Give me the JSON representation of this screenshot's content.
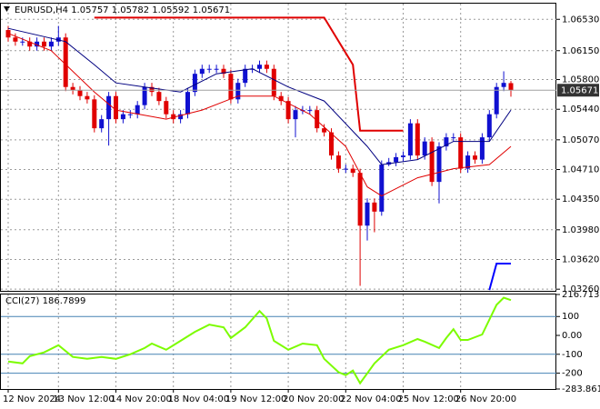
{
  "chart_data": [
    {
      "type": "candlestick",
      "title": "EURUSD,H4  1.05757 1.05782 1.05592 1.05671",
      "categories": [
        "12 Nov 2024",
        null,
        null,
        null,
        null,
        null,
        null,
        "13 Nov 12:00",
        null,
        null,
        null,
        null,
        null,
        null,
        null,
        "14 Nov 20:00",
        null,
        null,
        null,
        null,
        null,
        null,
        null,
        "18 Nov 04:00",
        null,
        null,
        null,
        null,
        null,
        null,
        null,
        "19 Nov 12:00",
        null,
        null,
        null,
        null,
        null,
        null,
        null,
        "20 Nov 20:00",
        null,
        null,
        null,
        null,
        null,
        null,
        null,
        "22 Nov 04:00",
        null,
        null,
        null,
        null,
        null,
        null,
        null,
        "25 Nov 12:00",
        null,
        null,
        null,
        null,
        null,
        null,
        null,
        "26 Nov 20:00",
        null,
        null,
        null,
        null,
        null,
        null,
        null
      ],
      "open": [
        1.064,
        1.0631,
        1.0626,
        1.0626,
        1.062,
        1.0626,
        1.062,
        1.0626,
        1.0631,
        1.0571,
        1.0567,
        1.056,
        1.0556,
        1.0521,
        1.0532,
        1.056,
        1.0532,
        1.0538,
        1.0538,
        1.0549,
        1.0571,
        1.0565,
        1.0554,
        1.0538,
        1.0532,
        1.0538,
        1.0565,
        1.0587,
        1.0593,
        1.0593,
        1.0593,
        1.0587,
        1.0556,
        1.0576,
        1.0593,
        1.0593,
        1.0598,
        1.0593,
        1.056,
        1.0554,
        1.0532,
        1.0543,
        1.0543,
        1.0543,
        1.0521,
        1.0516,
        1.0488,
        1.0472,
        1.0472,
        1.0467,
        1.0403,
        1.0431,
        1.042,
        1.0477,
        1.048,
        1.0486,
        1.0488,
        1.0527,
        1.0488,
        1.0505,
        1.0456,
        1.0499,
        1.051,
        1.051,
        1.0472,
        1.0488,
        1.0483,
        1.051,
        1.0538,
        1.0571,
        1.05757
      ],
      "high": [
        1.0645,
        1.0636,
        1.0631,
        1.0631,
        1.0631,
        1.0631,
        1.0631,
        1.0645,
        1.0636,
        1.0576,
        1.0572,
        1.0565,
        1.0561,
        1.0537,
        1.0565,
        1.0565,
        1.0543,
        1.0543,
        1.0554,
        1.0576,
        1.0576,
        1.057,
        1.0559,
        1.0543,
        1.0543,
        1.057,
        1.0592,
        1.0598,
        1.0598,
        1.0598,
        1.0598,
        1.0592,
        1.0581,
        1.0598,
        1.0598,
        1.0603,
        1.0603,
        1.0598,
        1.0565,
        1.0559,
        1.0548,
        1.0548,
        1.0548,
        1.0548,
        1.0526,
        1.0521,
        1.0493,
        1.0477,
        1.0477,
        1.0472,
        1.0436,
        1.0436,
        1.0482,
        1.0485,
        1.0491,
        1.0493,
        1.0532,
        1.0532,
        1.051,
        1.051,
        1.0504,
        1.0515,
        1.0515,
        1.0515,
        1.0493,
        1.0493,
        1.0515,
        1.0543,
        1.0576,
        1.059,
        1.05782
      ],
      "low": [
        1.0626,
        1.0621,
        1.0621,
        1.0615,
        1.0615,
        1.0615,
        1.0615,
        1.0621,
        1.0566,
        1.0562,
        1.0555,
        1.0551,
        1.0516,
        1.0516,
        1.05,
        1.0527,
        1.0527,
        1.0533,
        1.0533,
        1.0544,
        1.056,
        1.0549,
        1.0533,
        1.0527,
        1.0527,
        1.0533,
        1.056,
        1.0582,
        1.0588,
        1.0588,
        1.0582,
        1.0551,
        1.0551,
        1.0571,
        1.0588,
        1.0588,
        1.0588,
        1.0555,
        1.0549,
        1.0527,
        1.051,
        1.0538,
        1.0538,
        1.0516,
        1.0511,
        1.0483,
        1.0467,
        1.0467,
        1.0462,
        1.033,
        1.0385,
        1.0395,
        1.0415,
        1.0475,
        1.0475,
        1.0481,
        1.0483,
        1.0483,
        1.0483,
        1.0451,
        1.043,
        1.0494,
        1.0505,
        1.0467,
        1.0467,
        1.0478,
        1.0478,
        1.0505,
        1.0533,
        1.0566,
        1.05592
      ],
      "close": [
        1.0631,
        1.0626,
        1.0626,
        1.062,
        1.0626,
        1.062,
        1.0626,
        1.0631,
        1.0571,
        1.0567,
        1.056,
        1.0556,
        1.0521,
        1.0532,
        1.056,
        1.0532,
        1.0538,
        1.0538,
        1.0549,
        1.0571,
        1.0565,
        1.0554,
        1.0538,
        1.0532,
        1.0538,
        1.0565,
        1.0587,
        1.0593,
        1.0593,
        1.0593,
        1.0587,
        1.0556,
        1.0576,
        1.0593,
        1.0593,
        1.0598,
        1.0593,
        1.056,
        1.0554,
        1.0532,
        1.0543,
        1.0543,
        1.0543,
        1.0521,
        1.0516,
        1.0488,
        1.0472,
        1.0472,
        1.0467,
        1.0403,
        1.0431,
        1.042,
        1.0477,
        1.048,
        1.0486,
        1.0488,
        1.0527,
        1.0488,
        1.0505,
        1.0456,
        1.0499,
        1.051,
        1.051,
        1.0472,
        1.0488,
        1.0483,
        1.051,
        1.0538,
        1.0571,
        1.0576,
        1.05671
      ],
      "up_color": "#1010d0",
      "down_color": "#e00000",
      "lines": [
        {
          "color": "#000080",
          "x": [
            0,
            8,
            12,
            15,
            19,
            24,
            29,
            34,
            39,
            44,
            50,
            52,
            57,
            62,
            67,
            70
          ],
          "values": [
            1.0642,
            1.0626,
            1.0598,
            1.0576,
            1.0571,
            1.0565,
            1.0587,
            1.0593,
            1.0571,
            1.0554,
            1.0499,
            1.0477,
            1.0483,
            1.0505,
            1.0505,
            1.0543
          ]
        },
        {
          "color": "#e00000",
          "x": [
            0,
            6,
            12,
            15,
            22,
            27,
            32,
            37,
            42,
            47,
            50,
            52,
            57,
            62,
            67,
            70
          ],
          "values": [
            1.0636,
            1.0615,
            1.0565,
            1.0543,
            1.0532,
            1.0543,
            1.056,
            1.056,
            1.0538,
            1.0499,
            1.045,
            1.0439,
            1.0461,
            1.0472,
            1.0477,
            1.0499
          ]
        },
        {
          "color": "#e00000",
          "width": 2,
          "x": [
            12,
            44,
            48,
            49,
            55
          ],
          "values": [
            1.0655,
            1.0655,
            1.0598,
            1.0518,
            1.0518
          ]
        },
        {
          "color": "#0000ff",
          "width": 2,
          "x": [
            67,
            68,
            70
          ],
          "values": [
            1.0325,
            1.0357,
            1.0357
          ]
        }
      ],
      "last_price": 1.05671,
      "ylim": [
        1.0324,
        1.0672
      ],
      "yticks": [
        {
          "value": 1.0653,
          "label": "1.06530"
        },
        {
          "value": 1.0615,
          "label": "1.06150"
        },
        {
          "value": 1.058,
          "label": "1.05800"
        },
        {
          "value": 1.0544,
          "label": "1.05440"
        },
        {
          "value": 1.0507,
          "label": "1.05070"
        },
        {
          "value": 1.0471,
          "label": "1.04710"
        },
        {
          "value": 1.0435,
          "label": "1.04350"
        },
        {
          "value": 1.0398,
          "label": "1.03980"
        },
        {
          "value": 1.0362,
          "label": "1.03620"
        },
        {
          "value": 1.0326,
          "label": "1.03260"
        }
      ],
      "grid": true
    },
    {
      "type": "line",
      "title": "CCI(27) 186.7899",
      "series": [
        {
          "color": "#7cfc00",
          "x": [
            0,
            2,
            3,
            5,
            7,
            9,
            11,
            13,
            15,
            17,
            19,
            20,
            22,
            24,
            26,
            28,
            30,
            31,
            33,
            35,
            36,
            37,
            39,
            41,
            43,
            44,
            46,
            47,
            48,
            49,
            51,
            53,
            55,
            57,
            58,
            60,
            61,
            62,
            63,
            64,
            66,
            68,
            69,
            70
          ],
          "values": [
            -138,
            -148,
            -110,
            -90,
            -52,
            -114,
            -124,
            -114,
            -124,
            -100,
            -67,
            -43,
            -76,
            -29,
            19,
            57,
            43,
            -14,
            43,
            129,
            90,
            -29,
            -76,
            -43,
            -52,
            -124,
            -195,
            -210,
            -186,
            -253,
            -148,
            -76,
            -52,
            -19,
            -33,
            -67,
            -14,
            33,
            -24,
            -24,
            5,
            162,
            200,
            186.7899
          ]
        }
      ],
      "levels": [
        100,
        -100,
        -200
      ],
      "level_color": "#4682b4",
      "ylim": [
        -283.8618,
        216.7131
      ],
      "yticks": [
        216.7131,
        100,
        {
          "value": 0,
          "label": "0.00"
        },
        -100,
        -200,
        -283.8618
      ]
    }
  ]
}
